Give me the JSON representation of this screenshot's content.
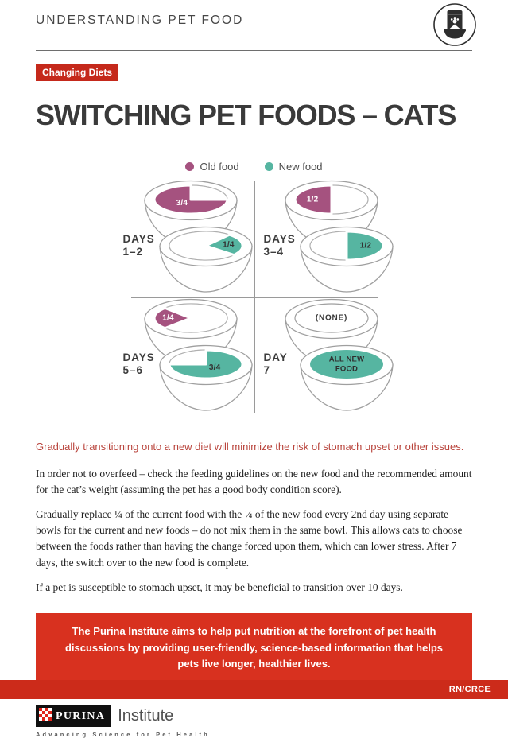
{
  "header": {
    "eyebrow": "UNDERSTANDING PET FOOD",
    "icon": "pet-food-bag-and-bowl-icon"
  },
  "badge": {
    "label": "Changing Diets",
    "bg": "#c5291b"
  },
  "title": "SWITCHING PET FOODS – CATS",
  "legend": {
    "items": [
      {
        "label": "Old food",
        "color": "#a5527f"
      },
      {
        "label": "New food",
        "color": "#56b5a1"
      }
    ]
  },
  "chart_data": {
    "type": "diagram",
    "description": "7-day cat food transition schedule; each period shows a pair of bowls with the fraction of old food and new food served in separate bowls",
    "old_food_color": "#a5527f",
    "new_food_color": "#56b5a1",
    "quadrants": [
      {
        "period": "DAYS",
        "range": "1–2",
        "bowls": [
          {
            "food": "old",
            "label_lines": [
              "3/4"
            ],
            "fraction": 0.75,
            "fill": "#a5527f",
            "label_color": "#ffffff",
            "sector": [
              0,
              270
            ]
          },
          {
            "food": "new",
            "label_lines": [
              "1/4"
            ],
            "fraction": 0.25,
            "fill": "#56b5a1",
            "label_color": "#333333",
            "sector": [
              -50,
              40
            ]
          }
        ]
      },
      {
        "period": "DAYS",
        "range": "3–4",
        "bowls": [
          {
            "food": "old",
            "label_lines": [
              "1/2"
            ],
            "fraction": 0.5,
            "fill": "#a5527f",
            "label_color": "#ffffff",
            "sector": [
              90,
              270
            ]
          },
          {
            "food": "new",
            "label_lines": [
              "1/2"
            ],
            "fraction": 0.5,
            "fill": "#56b5a1",
            "label_color": "#333333",
            "sector": [
              -90,
              90
            ]
          }
        ]
      },
      {
        "period": "DAYS",
        "range": "5–6",
        "bowls": [
          {
            "food": "old",
            "label_lines": [
              "1/4"
            ],
            "fraction": 0.25,
            "fill": "#a5527f",
            "label_color": "#ffffff",
            "sector": [
              135,
              225
            ]
          },
          {
            "food": "new",
            "label_lines": [
              "3/4"
            ],
            "fraction": 0.75,
            "fill": "#56b5a1",
            "label_color": "#333333",
            "sector": [
              -90,
              180
            ]
          }
        ]
      },
      {
        "period": "DAY",
        "range": "7",
        "bowls": [
          {
            "food": "old",
            "label_lines": [
              "(NONE)"
            ],
            "fraction": 0,
            "empty": true,
            "label_color": "#3a3a3a"
          },
          {
            "food": "new",
            "label_lines": [
              "ALL NEW",
              "FOOD"
            ],
            "fraction": 1,
            "full": true,
            "fill": "#56b5a1",
            "label_color": "#2f2f2f"
          }
        ]
      }
    ]
  },
  "content": {
    "highlight": "Gradually transitioning onto a new diet will minimize the risk of stomach upset or other issues.",
    "highlight_color": "#b9443c",
    "paragraphs": [
      "In order not to overfeed – check the feeding guidelines on the new food and the recommended amount for the cat’s weight (assuming the pet has a good body condition score).",
      "Gradually replace ¼ of the current food with the ¼ of the new food every 2nd day using separate bowls for the current and new foods – do not mix them in the same bowl. This allows cats to choose between the foods rather than having the change forced upon them, which can lower stress. After 7 days, the switch over to the new food is complete.",
      "If a pet is susceptible to stomach upset, it may be beneficial to transition over 10 days."
    ]
  },
  "callout": {
    "text": "The Purina Institute aims to help put nutrition at the forefront of pet health discussions by providing user-friendly, science-based information that helps pets live longer, healthier lives.",
    "bg": "#d8311f"
  },
  "footer": {
    "brand": "PURINA",
    "brand_suffix": "Institute",
    "tagline": "Advancing Science for Pet Health",
    "brand_red": "#e1251b",
    "bar_bg": "#cc2b1a",
    "code": "RN/CRCE"
  }
}
